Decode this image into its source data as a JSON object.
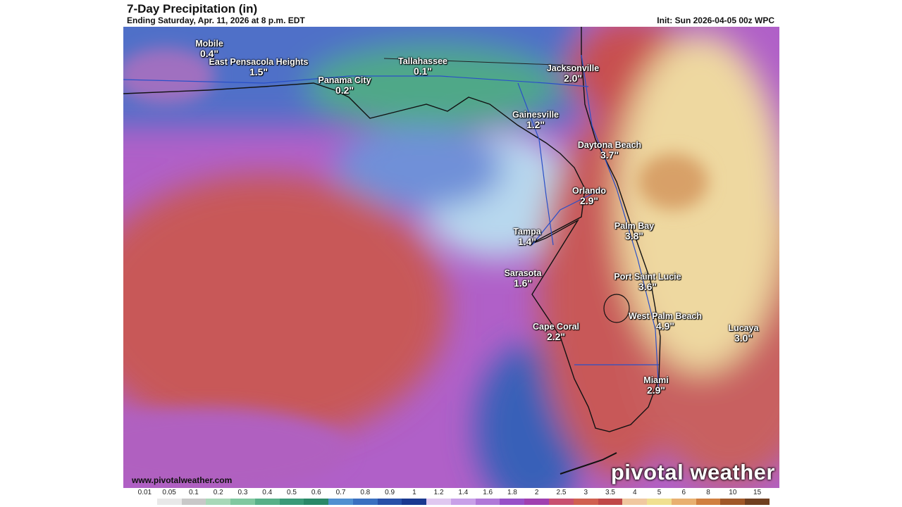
{
  "header": {
    "title": "7-Day Precipitation (in)",
    "subtitle": "Ending Saturday, Apr. 11, 2026 at 8 p.m. EDT",
    "init": "Init: Sun 2026-04-05 00z WPC"
  },
  "cities": [
    {
      "name": "Mobile",
      "value": "0.4\""
    },
    {
      "name": "East Pensacola Heights",
      "value": "1.5\""
    },
    {
      "name": "Panama City",
      "value": "0.2\""
    },
    {
      "name": "Tallahassee",
      "value": "0.1\""
    },
    {
      "name": "Jacksonville",
      "value": "2.0\""
    },
    {
      "name": "Gainesville",
      "value": "1.2\""
    },
    {
      "name": "Daytona Beach",
      "value": "3.7\""
    },
    {
      "name": "Orlando",
      "value": "2.9\""
    },
    {
      "name": "Palm Bay",
      "value": "3.8\""
    },
    {
      "name": "Tampa",
      "value": "1.4\""
    },
    {
      "name": "Sarasota",
      "value": "1.6\""
    },
    {
      "name": "Port Saint Lucie",
      "value": "3.6\""
    },
    {
      "name": "West Palm Beach",
      "value": "4.9\""
    },
    {
      "name": "Lucaya",
      "value": "3.0\""
    },
    {
      "name": "Cape Coral",
      "value": "2.2\""
    },
    {
      "name": "Miami",
      "value": "2.9\""
    }
  ],
  "watermark": "www.pivotalweather.com",
  "brand": "pivotal weather",
  "scale": {
    "labels": [
      "0.01",
      "0.05",
      "0.1",
      "0.2",
      "0.3",
      "0.4",
      "0.5",
      "0.6",
      "0.7",
      "0.8",
      "0.9",
      "1",
      "1.2",
      "1.4",
      "1.6",
      "1.8",
      "2",
      "2.5",
      "3",
      "3.5",
      "4",
      "5",
      "6",
      "8",
      "10",
      "15"
    ],
    "colors": [
      "#ffffff",
      "#e8e8e8",
      "#c8c8c8",
      "#a8d8b8",
      "#80c8a0",
      "#58b088",
      "#3a9a78",
      "#2a8868",
      "#5090d0",
      "#3a70c0",
      "#2850a8",
      "#1a3890",
      "#e0c8f0",
      "#c8a0e8",
      "#b078d8",
      "#9850c8",
      "#a040b0",
      "#c85070",
      "#d06050",
      "#c04848",
      "#f0c8a0",
      "#f0e090",
      "#e8b070",
      "#d08040",
      "#a05828",
      "#704020"
    ]
  }
}
